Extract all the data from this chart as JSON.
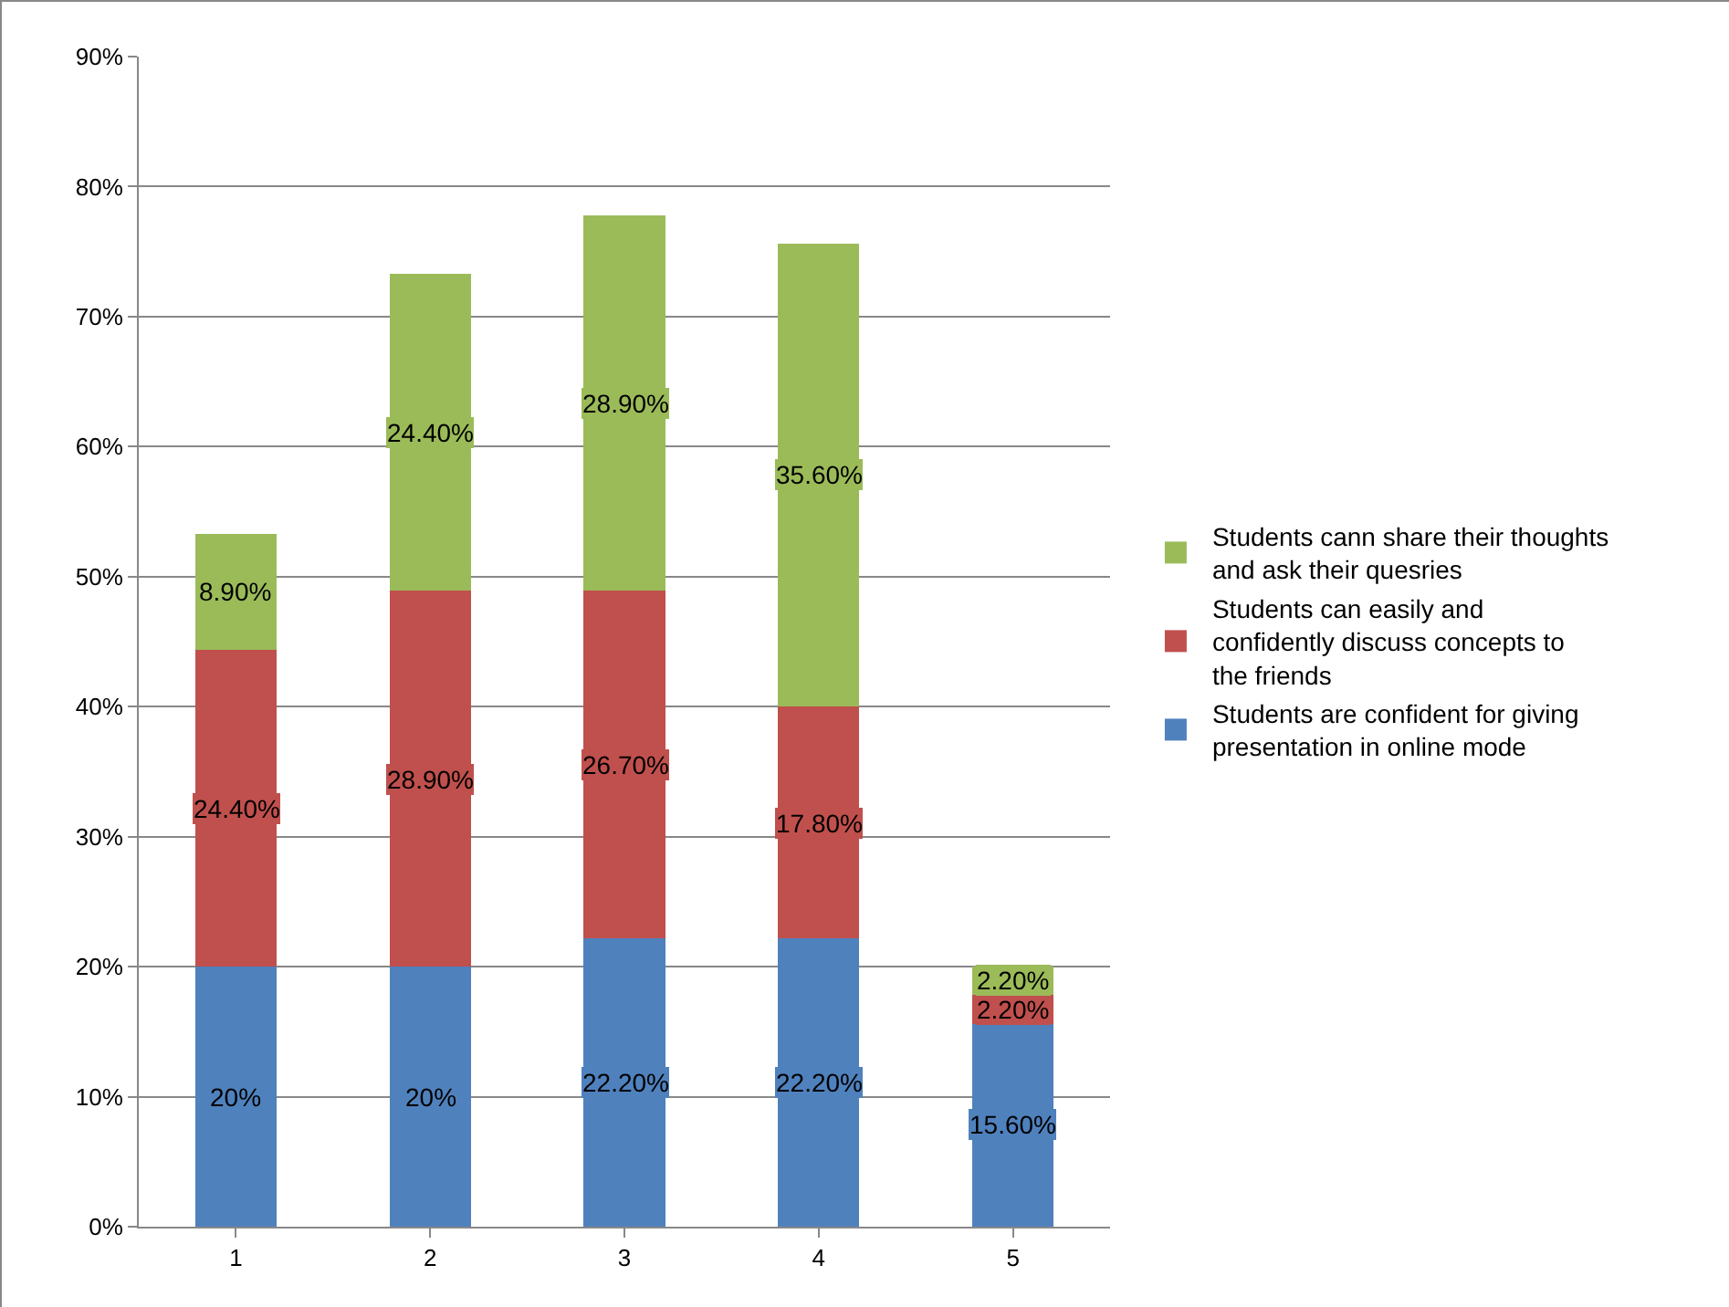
{
  "chart_data": {
    "type": "bar",
    "stacked": true,
    "categories": [
      "1",
      "2",
      "3",
      "4",
      "5"
    ],
    "series": [
      {
        "name": "Students are confident for giving presentation in online mode",
        "color": "#4f81bd",
        "values": [
          20,
          20,
          22.2,
          22.2,
          15.6
        ],
        "value_labels": [
          "20%",
          "20%",
          "22.20%",
          "22.20%",
          "15.60%"
        ]
      },
      {
        "name": "Students can easily and confidently discuss concepts to the friends",
        "color": "#c0504d",
        "values": [
          24.4,
          28.9,
          26.7,
          17.8,
          2.2
        ],
        "value_labels": [
          "24.40%",
          "28.90%",
          "26.70%",
          "17.80%",
          "2.20%"
        ]
      },
      {
        "name": "Students cann share their thoughts and ask their quesries",
        "color": "#9bbb59",
        "values": [
          8.9,
          24.4,
          28.9,
          35.6,
          2.2
        ],
        "value_labels": [
          "8.90%",
          "24.40%",
          "28.90%",
          "35.60%",
          "2.20%"
        ]
      }
    ],
    "ylim": [
      0,
      90
    ],
    "yticks": [
      {
        "value": 0,
        "label": "0%"
      },
      {
        "value": 10,
        "label": "10%"
      },
      {
        "value": 20,
        "label": "20%"
      },
      {
        "value": 30,
        "label": "30%"
      },
      {
        "value": 40,
        "label": "40%"
      },
      {
        "value": 50,
        "label": "50%"
      },
      {
        "value": 60,
        "label": "60%"
      },
      {
        "value": 70,
        "label": "70%"
      },
      {
        "value": 80,
        "label": "80%"
      },
      {
        "value": 90,
        "label": "90%"
      }
    ],
    "grid": "y",
    "legend": "right"
  }
}
